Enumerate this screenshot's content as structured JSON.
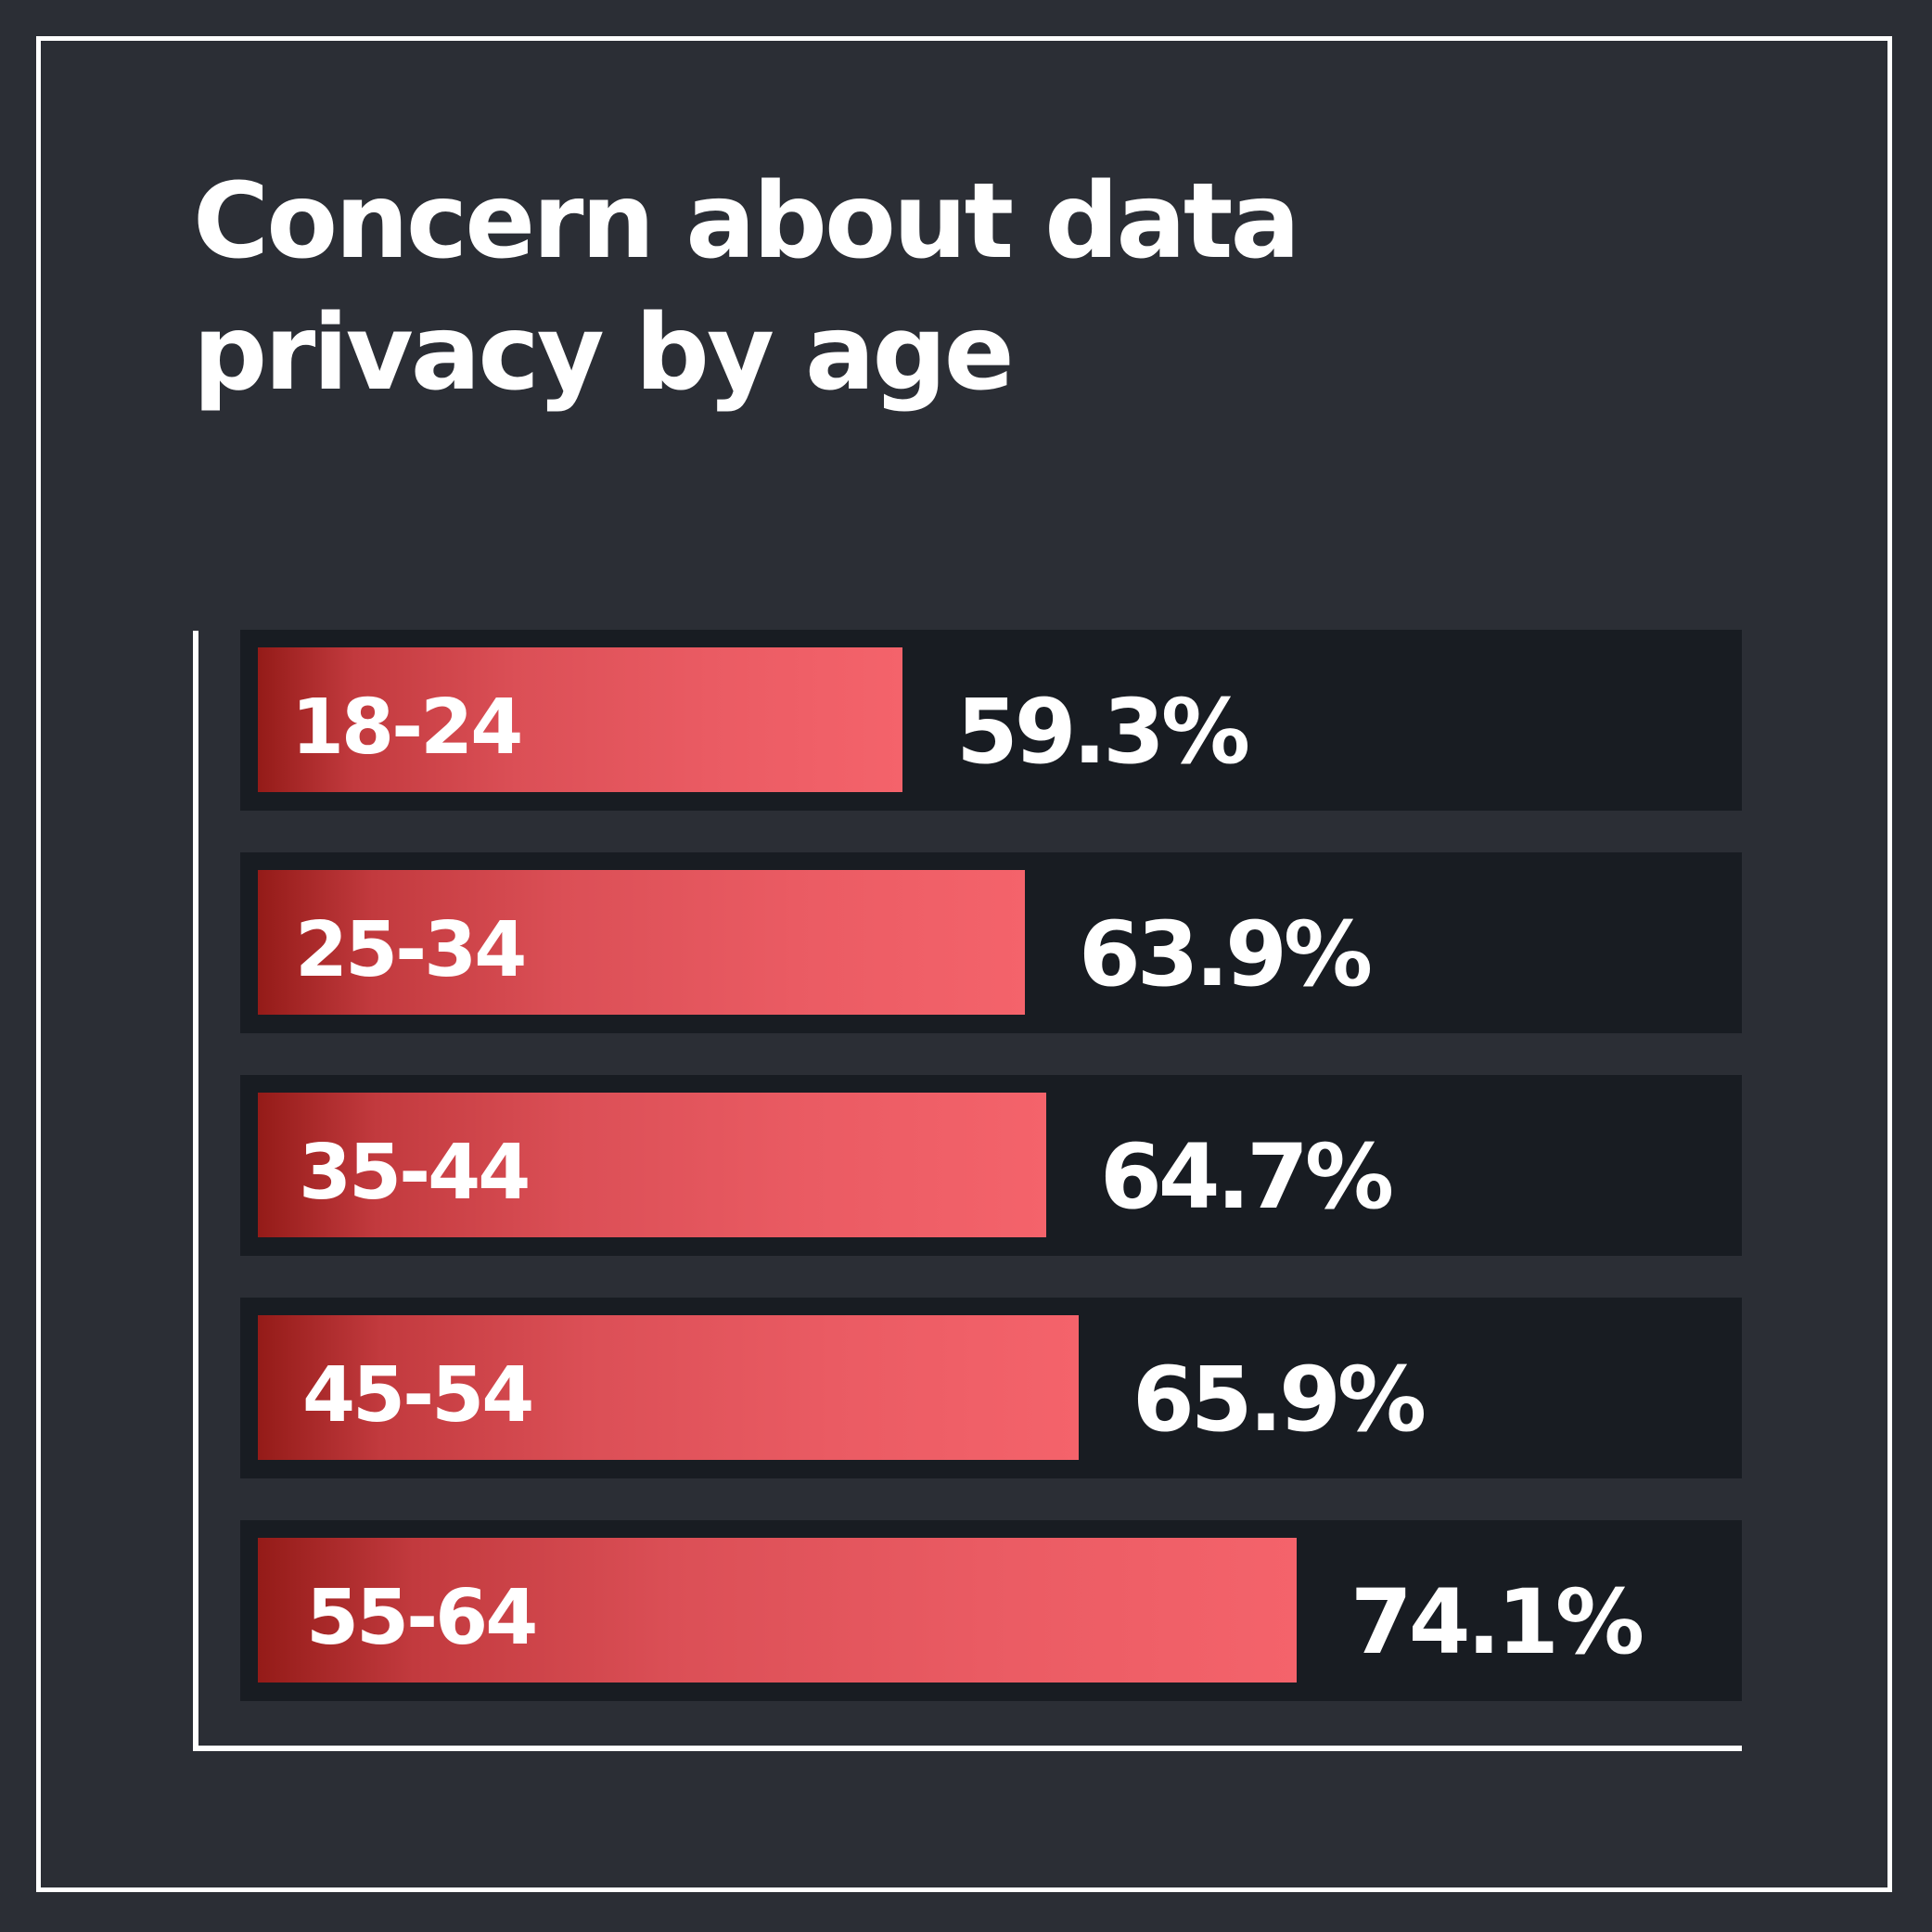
{
  "chart_data": {
    "type": "bar",
    "orientation": "horizontal",
    "title": "Concern about data privacy by age",
    "categories": [
      "18-24",
      "25-34",
      "35-44",
      "45-54",
      "55-64"
    ],
    "values": [
      59.3,
      63.9,
      64.7,
      65.9,
      74.1
    ],
    "value_labels": [
      "59.3%",
      "63.9%",
      "64.7%",
      "65.9%",
      "74.1%"
    ],
    "unit": "%",
    "grid": false,
    "legend": "none",
    "colors": {
      "background": "#2b2e35",
      "row_background": "#181c22",
      "bar_start": "#941b18",
      "bar_end": "#f4636b",
      "text": "#ffffff"
    }
  }
}
